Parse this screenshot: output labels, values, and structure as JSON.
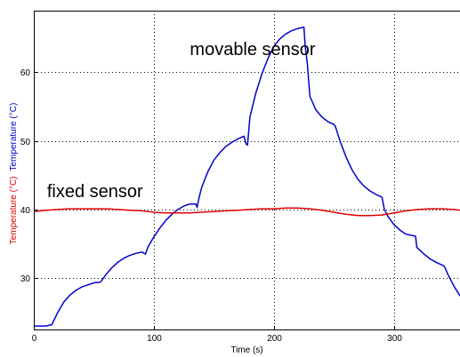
{
  "chart_data": {
    "type": "line",
    "title": "",
    "xlabel": "Time (s)",
    "ylabel_parts": [
      {
        "text": "Temperature (°C)",
        "color": "#e00000"
      },
      {
        "text": "Temperature (°C)",
        "color": "#0000cc"
      }
    ],
    "xlim": [
      0,
      355
    ],
    "ylim": [
      22.5,
      69
    ],
    "x_ticks": [
      0,
      100,
      200,
      300
    ],
    "y_ticks": [
      30,
      40,
      50,
      60
    ],
    "grid": true,
    "grid_style": "dotted",
    "annotations": [
      {
        "text": "movable sensor",
        "x": 130,
        "y": 62.5,
        "color": "#000000"
      },
      {
        "text": "fixed sensor",
        "x": 11,
        "y": 41.8,
        "color": "#000000"
      }
    ],
    "series": [
      {
        "color": "#0000cc",
        "x": [
          0,
          5,
          10,
          15,
          20,
          25,
          30,
          35,
          40,
          45,
          50,
          55,
          56,
          60,
          65,
          70,
          75,
          80,
          85,
          90,
          93,
          95,
          100,
          105,
          110,
          115,
          120,
          125,
          130,
          135,
          136,
          138,
          140,
          145,
          150,
          155,
          160,
          165,
          170,
          175,
          177,
          178,
          180,
          185,
          190,
          195,
          200,
          205,
          210,
          215,
          220,
          225,
          226,
          228,
          230,
          235,
          240,
          245,
          250,
          251,
          255,
          260,
          265,
          270,
          275,
          280,
          285,
          290,
          292,
          295,
          300,
          305,
          310,
          318,
          319,
          325,
          330,
          335,
          340,
          342,
          345,
          350,
          355
        ],
        "y": [
          23.0,
          23.0,
          23.0,
          23.2,
          25.0,
          26.5,
          27.5,
          28.2,
          28.7,
          29.0,
          29.3,
          29.4,
          29.5,
          30.5,
          31.5,
          32.3,
          32.9,
          33.3,
          33.6,
          33.8,
          33.5,
          34.5,
          36.0,
          37.3,
          38.4,
          39.3,
          40.0,
          40.5,
          40.8,
          40.8,
          40.3,
          42.0,
          43.3,
          45.5,
          47.2,
          48.3,
          49.2,
          49.8,
          50.3,
          50.7,
          49.5,
          49.4,
          53.5,
          57.0,
          59.8,
          62.0,
          63.8,
          64.9,
          65.6,
          66.1,
          66.4,
          66.6,
          64.0,
          61.0,
          56.5,
          54.5,
          53.5,
          52.8,
          52.4,
          52.2,
          50.0,
          47.7,
          45.8,
          44.4,
          43.4,
          42.7,
          42.2,
          41.8,
          40.0,
          39.0,
          37.8,
          37.0,
          36.4,
          36.1,
          34.5,
          33.5,
          32.8,
          32.3,
          31.9,
          31.7,
          30.5,
          28.8,
          27.4
        ]
      },
      {
        "color": "#e00000",
        "x": [
          0,
          10,
          20,
          30,
          40,
          50,
          60,
          70,
          80,
          90,
          100,
          110,
          120,
          130,
          140,
          150,
          160,
          170,
          180,
          190,
          200,
          210,
          220,
          230,
          240,
          250,
          260,
          270,
          280,
          290,
          300,
          310,
          320,
          330,
          340,
          350,
          355
        ],
        "y": [
          39.7,
          39.9,
          40.0,
          40.1,
          40.1,
          40.1,
          40.1,
          40.0,
          39.9,
          39.8,
          39.6,
          39.5,
          39.5,
          39.5,
          39.6,
          39.7,
          39.8,
          39.9,
          40.0,
          40.1,
          40.1,
          40.2,
          40.2,
          40.1,
          39.9,
          39.6,
          39.3,
          39.1,
          39.1,
          39.2,
          39.5,
          39.8,
          40.0,
          40.1,
          40.1,
          40.0,
          39.9
        ]
      }
    ]
  }
}
